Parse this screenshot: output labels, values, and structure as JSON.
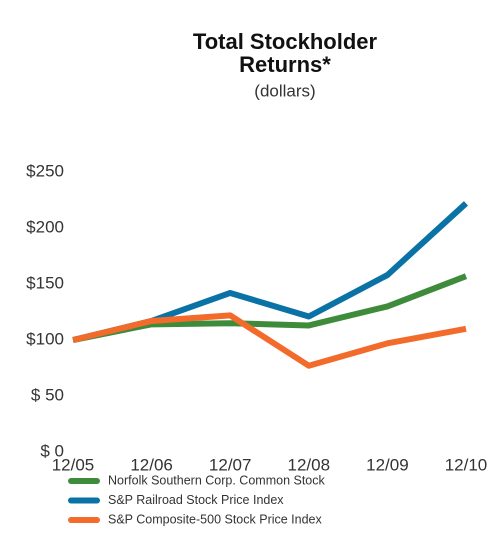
{
  "chart_data": {
    "type": "line",
    "title": [
      "Total Stockholder",
      "Returns*"
    ],
    "subtitle": "(dollars)",
    "categories": [
      "12/05",
      "12/06",
      "12/07",
      "12/08",
      "12/09",
      "12/10"
    ],
    "series": [
      {
        "name": "Norfolk Southern Corp. Common Stock",
        "color": "#3f8b3c",
        "values": [
          100,
          114,
          115,
          113,
          130,
          157
        ]
      },
      {
        "name": "S&P Railroad Stock Price Index",
        "color": "#0b72a6",
        "values": [
          100,
          117,
          142,
          121,
          158,
          222
        ]
      },
      {
        "name": "S&P Composite-500 Stock Price Index",
        "color": "#f26b2b",
        "values": [
          100,
          117,
          122,
          77,
          97,
          110
        ]
      }
    ],
    "ylim": [
      0,
      250
    ],
    "yticks": [
      {
        "value": 0,
        "label": "$ 0"
      },
      {
        "value": 50,
        "label": "$ 50"
      },
      {
        "value": 100,
        "label": "$100"
      },
      {
        "value": 150,
        "label": "$150"
      },
      {
        "value": 200,
        "label": "$200"
      },
      {
        "value": 250,
        "label": "$250"
      }
    ],
    "grid": false
  }
}
